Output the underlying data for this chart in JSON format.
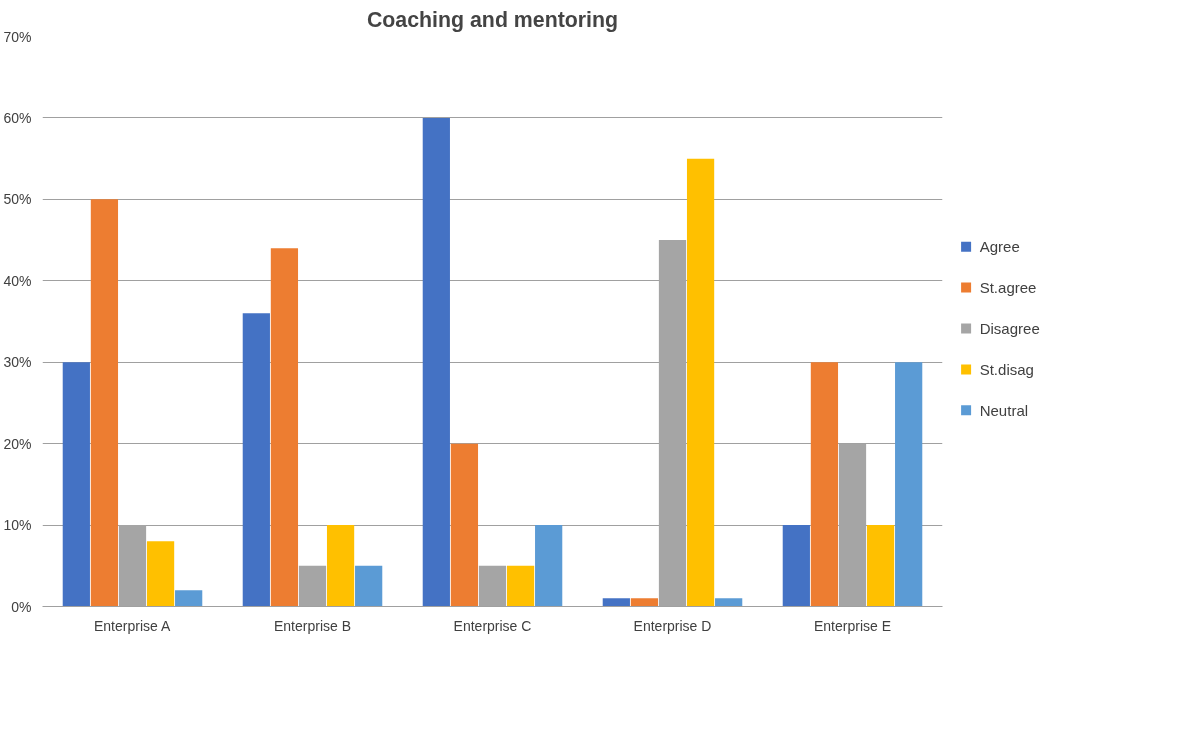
{
  "chart_data": {
    "type": "bar",
    "title": "Coaching and mentoring",
    "categories": [
      "Enterprise A",
      "Enterprise B",
      "Enterprise C",
      "Enterprise D",
      "Enterprise E"
    ],
    "series": [
      {
        "name": "Agree",
        "color": "#4472c4",
        "values": [
          30,
          36,
          60,
          1,
          10
        ]
      },
      {
        "name": "St.agree",
        "color": "#ed7d31",
        "values": [
          50,
          44,
          20,
          1,
          30
        ]
      },
      {
        "name": "Disagree",
        "color": "#a5a5a5",
        "values": [
          10,
          5,
          5,
          45,
          20
        ]
      },
      {
        "name": "St.disag",
        "color": "#ffc000",
        "values": [
          8,
          10,
          5,
          55,
          10
        ]
      },
      {
        "name": "Neutral",
        "color": "#5b9bd5",
        "values": [
          2,
          5,
          10,
          1,
          30
        ]
      }
    ],
    "ylim": [
      0,
      70
    ],
    "yticks": [
      {
        "value": 0,
        "label": "0%"
      },
      {
        "value": 10,
        "label": "10%"
      },
      {
        "value": 20,
        "label": "20%"
      },
      {
        "value": 30,
        "label": "30%"
      },
      {
        "value": 40,
        "label": "40%"
      },
      {
        "value": 50,
        "label": "50%"
      },
      {
        "value": 60,
        "label": "60%"
      },
      {
        "value": 70,
        "label": "70%"
      }
    ],
    "grid": "y",
    "legend": "right"
  }
}
